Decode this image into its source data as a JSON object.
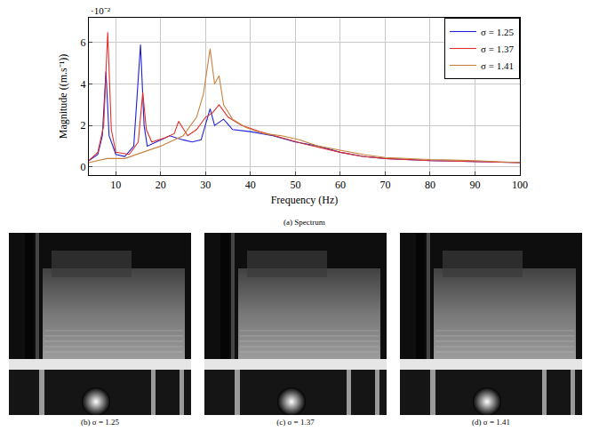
{
  "chart_data": {
    "type": "line",
    "caption": "(a) Spectrum",
    "x_label": "Frequency (Hz)",
    "y_label": "Magnitude ((m.s⁻¹))",
    "annotations": [
      "·10⁻²"
    ],
    "xlim": [
      4,
      100
    ],
    "xticks": [
      10,
      20,
      30,
      40,
      50,
      60,
      70,
      80,
      90,
      100
    ],
    "ylim": [
      -0.4,
      7.2
    ],
    "yticks": [
      0,
      2,
      4,
      6
    ],
    "grid": true,
    "legend": "top right",
    "series": [
      {
        "name": "σ = 1.25",
        "color": "#1f1fd6",
        "x": [
          4,
          6,
          7,
          7.8,
          8.5,
          10,
          12,
          14,
          15.5,
          16.3,
          17,
          20,
          22,
          25,
          27,
          29,
          31,
          32,
          34,
          36,
          40,
          45,
          50,
          55,
          60,
          65,
          70,
          80,
          90,
          100
        ],
        "values": [
          0.3,
          0.6,
          1.5,
          4.6,
          1.5,
          0.6,
          0.5,
          1.0,
          5.9,
          2.0,
          1.0,
          1.3,
          1.5,
          1.3,
          1.2,
          1.3,
          2.8,
          2.0,
          2.3,
          1.8,
          1.7,
          1.5,
          1.2,
          1.0,
          0.7,
          0.5,
          0.4,
          0.3,
          0.25,
          0.2
        ]
      },
      {
        "name": "σ = 1.37",
        "color": "#e0302a",
        "x": [
          4,
          6,
          7.3,
          8.2,
          9,
          10,
          13,
          15,
          16,
          16.8,
          18,
          21,
          23,
          24,
          26,
          28,
          30,
          31.5,
          33,
          35,
          38,
          42,
          47,
          52,
          56,
          60,
          65,
          70,
          80,
          90,
          100
        ],
        "values": [
          0.3,
          0.7,
          2.0,
          6.5,
          1.8,
          0.7,
          0.6,
          1.2,
          3.6,
          1.8,
          1.2,
          1.4,
          1.6,
          2.2,
          1.5,
          1.8,
          2.4,
          2.6,
          3.0,
          2.4,
          2.0,
          1.7,
          1.4,
          1.1,
          0.9,
          0.7,
          0.5,
          0.4,
          0.3,
          0.25,
          0.2
        ]
      },
      {
        "name": "σ = 1.41",
        "color": "#c8803c",
        "x": [
          4,
          8,
          12,
          16,
          20,
          22,
          25,
          28,
          29.5,
          31,
          32,
          33,
          34,
          36,
          39,
          43,
          47,
          51,
          55,
          60,
          65,
          70,
          80,
          90,
          100
        ],
        "values": [
          0.2,
          0.4,
          0.4,
          0.7,
          1.0,
          1.2,
          1.5,
          2.4,
          3.5,
          5.7,
          4.0,
          4.4,
          3.0,
          2.3,
          1.9,
          1.6,
          1.5,
          1.3,
          1.0,
          0.8,
          0.6,
          0.45,
          0.35,
          0.3,
          0.2
        ]
      }
    ]
  },
  "images": [
    {
      "caption": "(b) σ = 1.25"
    },
    {
      "caption": "(c) σ = 1.37"
    },
    {
      "caption": "(d) σ = 1.41"
    }
  ]
}
